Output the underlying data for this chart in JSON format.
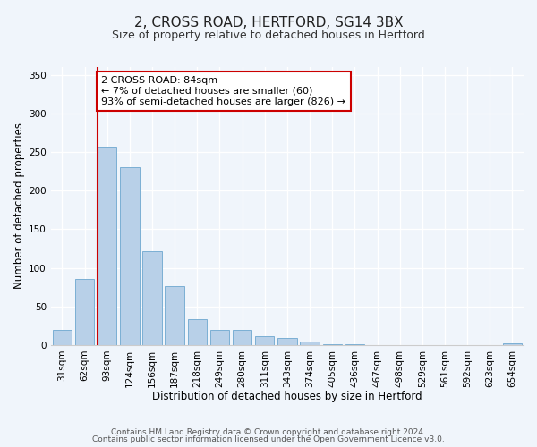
{
  "title": "2, CROSS ROAD, HERTFORD, SG14 3BX",
  "subtitle": "Size of property relative to detached houses in Hertford",
  "xlabel": "Distribution of detached houses by size in Hertford",
  "ylabel": "Number of detached properties",
  "bar_labels": [
    "31sqm",
    "62sqm",
    "93sqm",
    "124sqm",
    "156sqm",
    "187sqm",
    "218sqm",
    "249sqm",
    "280sqm",
    "311sqm",
    "343sqm",
    "374sqm",
    "405sqm",
    "436sqm",
    "467sqm",
    "498sqm",
    "529sqm",
    "561sqm",
    "592sqm",
    "623sqm",
    "654sqm"
  ],
  "bar_values": [
    19,
    86,
    257,
    230,
    122,
    76,
    33,
    20,
    20,
    11,
    9,
    4,
    1,
    1,
    0,
    0,
    0,
    0,
    0,
    0,
    2
  ],
  "bar_color": "#b8d0e8",
  "bar_edge_color": "#7bafd4",
  "vline_color": "#cc0000",
  "annotation_title": "2 CROSS ROAD: 84sqm",
  "annotation_line1": "← 7% of detached houses are smaller (60)",
  "annotation_line2": "93% of semi-detached houses are larger (826) →",
  "annotation_box_color": "#cc0000",
  "ylim": [
    0,
    360
  ],
  "yticks": [
    0,
    50,
    100,
    150,
    200,
    250,
    300,
    350
  ],
  "footer1": "Contains HM Land Registry data © Crown copyright and database right 2024.",
  "footer2": "Contains public sector information licensed under the Open Government Licence v3.0.",
  "bg_color": "#f0f5fb",
  "plot_bg_color": "#f0f5fb",
  "grid_color": "#ffffff",
  "title_fontsize": 11,
  "subtitle_fontsize": 9,
  "axis_label_fontsize": 8.5,
  "tick_fontsize": 7.5,
  "annotation_fontsize": 8,
  "footer_fontsize": 6.5
}
